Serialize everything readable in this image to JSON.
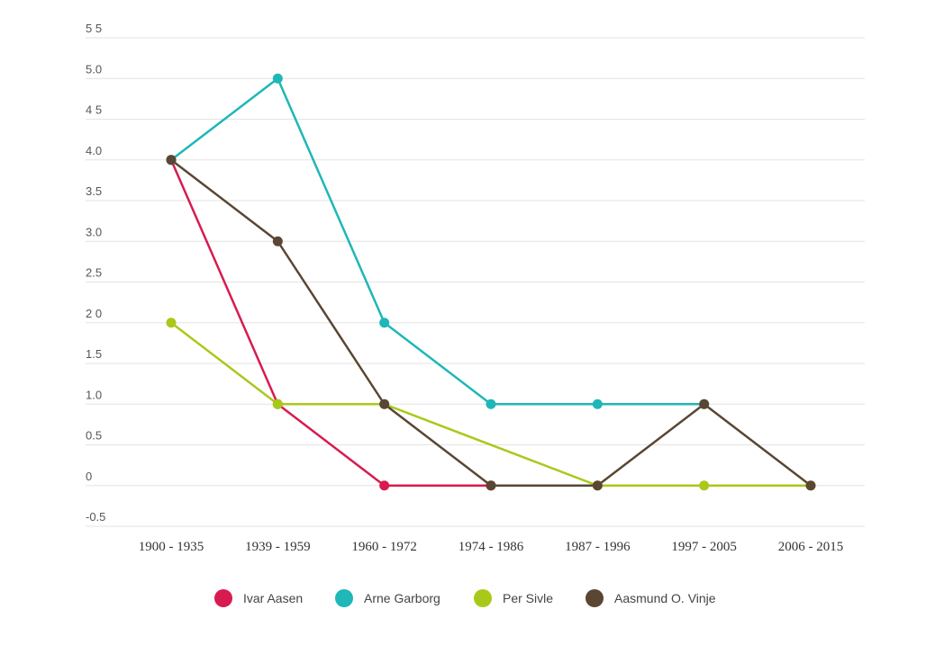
{
  "chart_data": {
    "type": "line",
    "categories": [
      "1900 - 1935",
      "1939 - 1959",
      "1960 - 1972",
      "1974 - 1986",
      "1987 - 1996",
      "1997 - 2005",
      "2006 - 2015"
    ],
    "yticks": [
      "5 5",
      "5.0",
      "4 5",
      "4.0",
      "3.5",
      "3.0",
      "2.5",
      "2 0",
      "1.5",
      "1.0",
      "0.5",
      "0",
      "-0.5"
    ],
    "ylim": [
      -0.5,
      5.5
    ],
    "grid": true,
    "legend_position": "bottom",
    "series": [
      {
        "name": "Ivar Aasen",
        "color": "#d81b4f",
        "values": [
          4,
          1,
          0,
          0,
          null,
          null,
          null
        ]
      },
      {
        "name": "Arne Garborg",
        "color": "#1fb7b7",
        "values": [
          4,
          5,
          2,
          1,
          1,
          1,
          null
        ]
      },
      {
        "name": "Per Sivle",
        "color": "#a9c91a",
        "values": [
          2,
          1,
          1,
          null,
          0,
          0,
          0
        ]
      },
      {
        "name": "Aasmund O. Vinje",
        "color": "#5a4632",
        "values": [
          4,
          3,
          1,
          0,
          0,
          1,
          0
        ]
      }
    ]
  }
}
